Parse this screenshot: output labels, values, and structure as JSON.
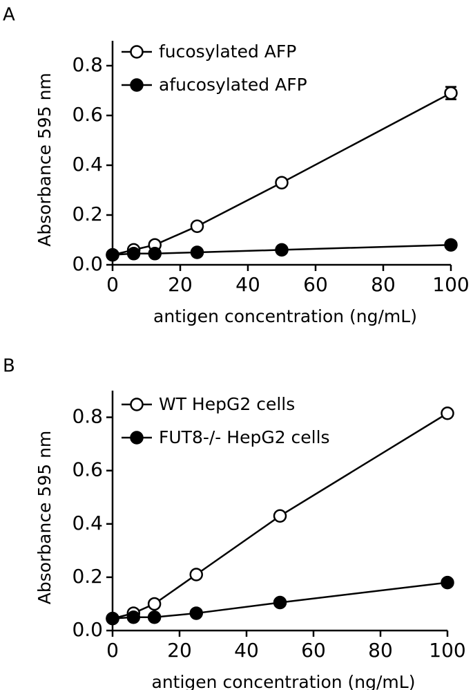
{
  "chart_data": [
    {
      "type": "line",
      "label": "A",
      "x_label": "antigen concentration (ng/mL)",
      "y_label": "Absorbance 595 nm",
      "x": [
        0,
        6.25,
        12.5,
        25,
        50,
        100
      ],
      "series": [
        {
          "name": "fucosylated AFP",
          "color": "#000000",
          "marker": "open",
          "values": [
            0.04,
            0.06,
            0.08,
            0.155,
            0.33,
            0.69
          ],
          "errors": [
            null,
            null,
            null,
            null,
            null,
            0.025
          ]
        },
        {
          "name": "afucosylated AFP",
          "color": "#000000",
          "marker": "filled",
          "values": [
            0.04,
            0.045,
            0.045,
            0.05,
            0.06,
            0.08
          ]
        }
      ],
      "xlim": [
        0,
        100
      ],
      "xticks": [
        0,
        20,
        40,
        60,
        80,
        100
      ],
      "ylim": [
        0,
        0.9
      ],
      "yticks": [
        {
          "value": 0,
          "label": "0.0"
        },
        0.2,
        0.4,
        0.6,
        0.8
      ]
    },
    {
      "type": "line",
      "label": "B",
      "x_label": "antigen concentration (ng/mL)",
      "y_label": "Absorbance 595 nm",
      "x": [
        0,
        6.25,
        12.5,
        25,
        50,
        100
      ],
      "series": [
        {
          "name": "WT HepG2 cells",
          "color": "#000000",
          "marker": "open",
          "values": [
            0.045,
            0.065,
            0.1,
            0.21,
            0.43,
            0.815
          ]
        },
        {
          "name": "FUT8-/- HepG2 cells",
          "color": "#000000",
          "marker": "filled",
          "values": [
            0.045,
            0.05,
            0.05,
            0.065,
            0.105,
            0.18
          ]
        }
      ],
      "xlim": [
        0,
        100
      ],
      "xticks": [
        0,
        20,
        40,
        60,
        80,
        100
      ],
      "ylim": [
        0,
        0.9
      ],
      "yticks": [
        {
          "value": 0,
          "label": "0.0"
        },
        0.2,
        0.4,
        0.6,
        0.8
      ]
    }
  ]
}
